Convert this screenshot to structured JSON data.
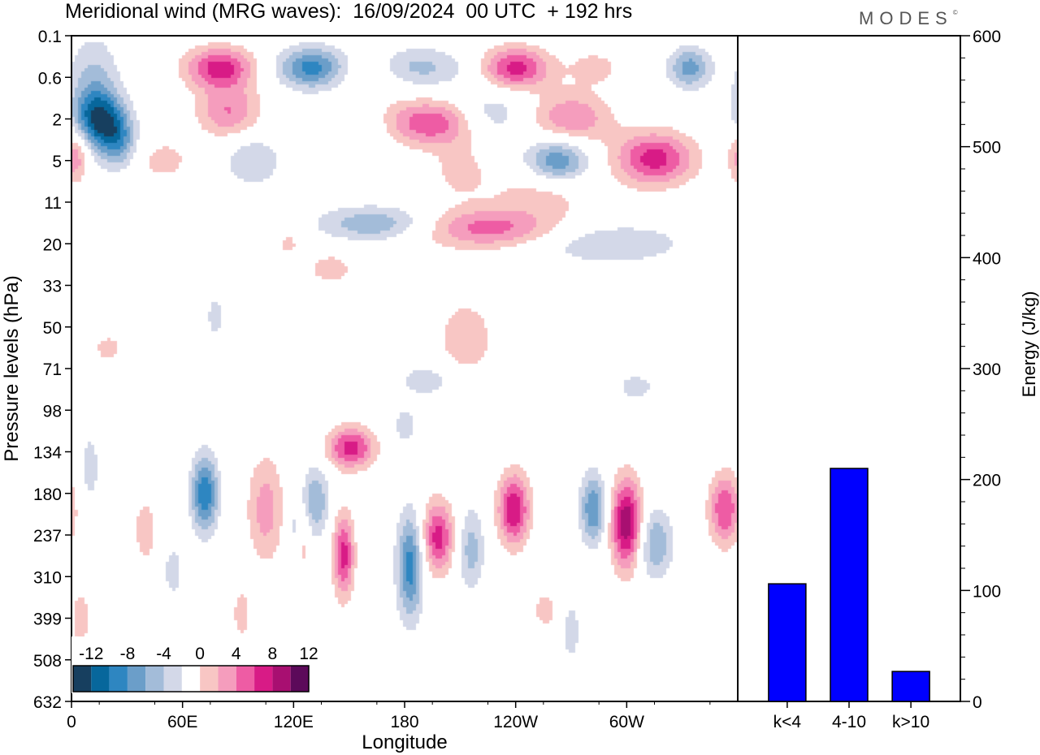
{
  "title": "Meridional wind (MRG waves):  16/09/2024  00 UTC  + 192 hrs",
  "brand": "MODES",
  "brand_mark": "©",
  "colors": {
    "neg": [
      "#173f5f",
      "#07679c",
      "#2e86c1",
      "#6b9ec9",
      "#a3bcd9",
      "#d3d8e8"
    ],
    "pos": [
      "#f8c6c4",
      "#f59dbd",
      "#ee5ca4",
      "#d81b86",
      "#a80f71",
      "#5c0a5a"
    ],
    "bars": "#0000ff"
  },
  "chart_data": [
    {
      "type": "heatmap",
      "description_variable": "Meridional wind (MRG waves)",
      "xlabel": "Longitude",
      "ylabel": "Pressure levels (hPa)",
      "x_ticks": [
        "0",
        "60E",
        "120E",
        "180",
        "120W",
        "60W"
      ],
      "y_ticks": [
        "0.1",
        "0.6",
        "2",
        "5",
        "11",
        "20",
        "33",
        "50",
        "71",
        "98",
        "134",
        "180",
        "237",
        "310",
        "399",
        "508",
        "632"
      ],
      "colorbar_labels": [
        "-12",
        "-8",
        "-4",
        "0",
        "4",
        "8",
        "12"
      ],
      "colorbar_levels": [
        -14,
        -12,
        -10,
        -8,
        -6,
        -4,
        -2,
        2,
        4,
        6,
        8,
        10,
        12,
        14
      ],
      "features": [
        {
          "lon": 80,
          "lev": 0.4,
          "value": 9,
          "sx": 13,
          "sy": 0.35
        },
        {
          "lon": 130,
          "lev": 0.4,
          "value": -9,
          "sx": 13,
          "sy": 0.35
        },
        {
          "lon": 240,
          "lev": 0.4,
          "value": 9,
          "sx": 13,
          "sy": 0.35
        },
        {
          "lon": 334,
          "lev": 0.4,
          "value": -7,
          "sx": 8,
          "sy": 0.35
        },
        {
          "lon": 185,
          "lev": 0.4,
          "value": -5,
          "sx": 20,
          "sy": 0.35
        },
        {
          "lon": 162,
          "lev": 0.5,
          "value": 3,
          "sx": 14,
          "sy": 0.35
        },
        {
          "lon": 283,
          "lev": 0.4,
          "value": 3,
          "sx": 10,
          "sy": 0.3
        },
        {
          "lon": 12,
          "lev": 0.9,
          "value": -5,
          "sx": 10,
          "sy": 0.9
        },
        {
          "lon": 15,
          "lev": 2,
          "value": -9,
          "sx": 9,
          "sy": 0.45
        },
        {
          "lon": 25,
          "lev": 3.2,
          "value": -7,
          "sx": 7,
          "sy": 0.45
        },
        {
          "lon": 85,
          "lev": 1.6,
          "value": 6,
          "sx": 12,
          "sy": 0.45
        },
        {
          "lon": 2,
          "lev": 4.5,
          "value": 6,
          "sx": 5,
          "sy": 0.45
        },
        {
          "lon": 50,
          "lev": 5,
          "value": 3,
          "sx": 10,
          "sy": 0.35
        },
        {
          "lon": 98,
          "lev": 5,
          "value": -4,
          "sx": 11,
          "sy": 0.45
        },
        {
          "lon": 195,
          "lev": 2.2,
          "value": 8,
          "sx": 22,
          "sy": 0.4
        },
        {
          "lon": 270,
          "lev": 2,
          "value": 6,
          "sx": 15,
          "sy": 0.45
        },
        {
          "lon": 315,
          "lev": 4.8,
          "value": 9,
          "sx": 15,
          "sy": 0.45
        },
        {
          "lon": 263,
          "lev": 5,
          "value": -8,
          "sx": 12,
          "sy": 0.4
        },
        {
          "lon": 225,
          "lev": 1.9,
          "value": -5,
          "sx": 14,
          "sy": 0.45
        },
        {
          "lon": 158,
          "lev": 2.5,
          "value": -3,
          "sx": 14,
          "sy": 0.45
        },
        {
          "lon": 210,
          "lev": 6,
          "value": 3,
          "sx": 10,
          "sy": 0.45
        },
        {
          "lon": 255,
          "lev": 9,
          "value": 3,
          "sx": 20,
          "sy": 0.4
        },
        {
          "lon": 165,
          "lev": 15,
          "value": -6,
          "sx": 22,
          "sy": 0.3
        },
        {
          "lon": 225,
          "lev": 16,
          "value": 7,
          "sx": 28,
          "sy": 0.35
        },
        {
          "lon": 290,
          "lev": 20,
          "value": -4,
          "sx": 30,
          "sy": 0.35
        },
        {
          "lon": 140,
          "lev": 27,
          "value": 3,
          "sx": 10,
          "sy": 0.3
        },
        {
          "lon": 117,
          "lev": 20,
          "value": 3,
          "sx": 4,
          "sy": 0.2
        },
        {
          "lon": 213,
          "lev": 55,
          "value": 4,
          "sx": 10,
          "sy": 0.6
        },
        {
          "lon": 78,
          "lev": 45,
          "value": -3,
          "sx": 4,
          "sy": 0.4
        },
        {
          "lon": 192,
          "lev": 78,
          "value": -3,
          "sx": 13,
          "sy": 0.3
        },
        {
          "lon": 305,
          "lev": 82,
          "value": -3,
          "sx": 8,
          "sy": 0.25
        },
        {
          "lon": 20,
          "lev": 60,
          "value": 3,
          "sx": 6,
          "sy": 0.25
        },
        {
          "lon": 72,
          "lev": 180,
          "value": -10,
          "sx": 5,
          "sy": 0.65
        },
        {
          "lon": 105,
          "lev": 200,
          "value": 5,
          "sx": 7,
          "sy": 0.9
        },
        {
          "lon": 132,
          "lev": 190,
          "value": -6,
          "sx": 5,
          "sy": 0.6
        },
        {
          "lon": 151,
          "lev": 130,
          "value": 9,
          "sx": 9,
          "sy": 0.35
        },
        {
          "lon": 147,
          "lev": 270,
          "value": 9,
          "sx": 4,
          "sy": 0.7
        },
        {
          "lon": 183,
          "lev": 290,
          "value": -9,
          "sx": 5,
          "sy": 0.9
        },
        {
          "lon": 198,
          "lev": 240,
          "value": 9,
          "sx": 6,
          "sy": 0.6
        },
        {
          "lon": 216,
          "lev": 260,
          "value": -5,
          "sx": 5,
          "sy": 0.7
        },
        {
          "lon": 239,
          "lev": 200,
          "value": 10,
          "sx": 6,
          "sy": 0.6
        },
        {
          "lon": 256,
          "lev": 380,
          "value": 3,
          "sx": 5,
          "sy": 0.35
        },
        {
          "lon": 282,
          "lev": 200,
          "value": -8,
          "sx": 5,
          "sy": 0.6
        },
        {
          "lon": 300,
          "lev": 220,
          "value": 12,
          "sx": 6,
          "sy": 0.75
        },
        {
          "lon": 315,
          "lev": 250,
          "value": -6,
          "sx": 7,
          "sy": 0.6
        },
        {
          "lon": 353,
          "lev": 200,
          "value": 8,
          "sx": 6,
          "sy": 0.6
        },
        {
          "lon": 40,
          "lev": 230,
          "value": 4,
          "sx": 4,
          "sy": 0.5
        },
        {
          "lon": 55,
          "lev": 300,
          "value": -3,
          "sx": 4,
          "sy": 0.5
        },
        {
          "lon": 10,
          "lev": 150,
          "value": -3,
          "sx": 4,
          "sy": 0.7
        },
        {
          "lon": 120,
          "lev": 230,
          "value": -3,
          "sx": 3,
          "sy": 0.6
        },
        {
          "lon": 125,
          "lev": 250,
          "value": 3,
          "sx": 3,
          "sy": 0.6
        },
        {
          "lon": 180,
          "lev": 110,
          "value": -3,
          "sx": 5,
          "sy": 0.35
        },
        {
          "lon": 5,
          "lev": 400,
          "value": 3,
          "sx": 4,
          "sy": 0.6
        },
        {
          "lon": 92,
          "lev": 390,
          "value": 3,
          "sx": 4,
          "sy": 0.5
        },
        {
          "lon": 270,
          "lev": 430,
          "value": -3,
          "sx": 4,
          "sy": 0.6
        }
      ]
    },
    {
      "type": "bar",
      "categories": [
        "k<4",
        "4-10",
        "k>10"
      ],
      "values": [
        106,
        210,
        27
      ],
      "ylabel": "Energy (J/kg)",
      "ylim": [
        0,
        600
      ],
      "y_ticks": [
        "0",
        "100",
        "200",
        "300",
        "400",
        "500",
        "600"
      ]
    }
  ]
}
